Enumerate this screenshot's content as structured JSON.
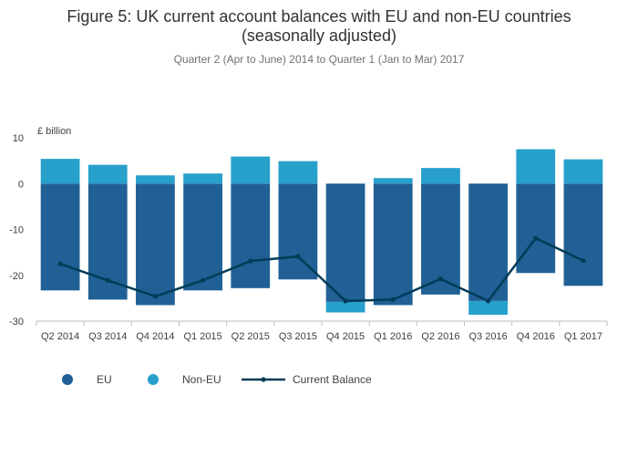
{
  "chart_data": {
    "type": "bar",
    "title": "Figure 5: UK current account balances with EU and non-EU countries",
    "title_line2": "(seasonally adjusted)",
    "subtitle": "Quarter 2 (Apr to June) 2014 to Quarter 1 (Jan to Mar) 2017",
    "ylabel": "£ billion",
    "ylim": [
      -30,
      10
    ],
    "yticks": [
      10,
      0,
      -10,
      -20,
      -30
    ],
    "ytick_labels": [
      "10",
      "0",
      "-10",
      "-20",
      "-30"
    ],
    "grid": false,
    "legend_position": "bottom-left",
    "categories": [
      "Q2 2014",
      "Q3 2014",
      "Q4 2014",
      "Q1 2015",
      "Q2 2015",
      "Q3 2015",
      "Q4 2015",
      "Q1 2016",
      "Q2 2016",
      "Q3 2016",
      "Q4 2016",
      "Q1 2017"
    ],
    "series": [
      {
        "name": "EU",
        "kind": "bar",
        "color": "#206095",
        "values": [
          -23.3,
          -25.3,
          -26.5,
          -23.3,
          -22.8,
          -20.9,
          -25.8,
          -26.5,
          -24.2,
          -25.6,
          -19.5,
          -22.3
        ]
      },
      {
        "name": "Non-EU",
        "kind": "bar",
        "color": "#27a0cc",
        "values": [
          5.4,
          4.1,
          1.8,
          2.2,
          5.9,
          4.9,
          -2.3,
          1.2,
          3.4,
          -3.0,
          7.5,
          5.3
        ]
      },
      {
        "name": "Current Balance",
        "kind": "line",
        "color": "#003c57",
        "values": [
          -17.5,
          -21.1,
          -24.6,
          -21.1,
          -16.9,
          -15.9,
          -25.6,
          -25.3,
          -20.8,
          -25.6,
          -11.9,
          -16.8
        ]
      }
    ]
  }
}
